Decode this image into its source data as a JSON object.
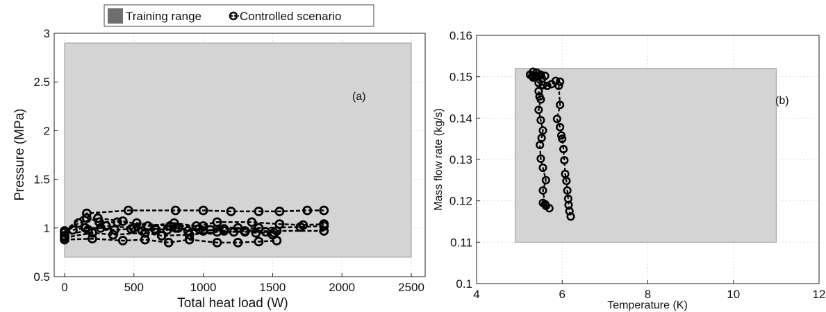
{
  "legend": {
    "items": [
      {
        "label": "Training range",
        "marker": "filled-square",
        "color": "#6e6e6e"
      },
      {
        "label": "Controlled scenario",
        "marker": "circle-dashed-line",
        "color": "#000000"
      }
    ]
  },
  "colors": {
    "training_fill": "#d4d4d4",
    "training_edge": "#9a9a9a",
    "series": "#000000",
    "grid": "#d9d9d9"
  },
  "chart_data": [
    {
      "type": "scatter",
      "annotation": "(a)",
      "xlabel": "Total heat load (W)",
      "ylabel": "Pressure (MPa)",
      "xlim": [
        -75,
        2600
      ],
      "ylim": [
        0.5,
        3
      ],
      "xticks": [
        0,
        500,
        1000,
        1500,
        2000,
        2500
      ],
      "yticks": [
        0.5,
        1,
        1.5,
        2,
        2.5,
        3
      ],
      "xtick_labels": [
        "0",
        "500",
        "1000",
        "1500",
        "2000",
        "2500"
      ],
      "ytick_labels": [
        "0.5",
        "1",
        "1.5",
        "2",
        "2.5",
        "3"
      ],
      "grid": true,
      "training_range": {
        "x": [
          0,
          2500
        ],
        "y": [
          0.7,
          2.9
        ]
      },
      "series": [
        {
          "x": [
            0,
            160,
            460,
            800,
            1000,
            1200,
            1400,
            1550,
            1750,
            1870
          ],
          "y": [
            0.97,
            1.15,
            1.18,
            1.18,
            1.18,
            1.17,
            1.17,
            1.17,
            1.18,
            1.18
          ]
        },
        {
          "x": [
            0,
            100,
            240,
            420,
            600,
            790,
            950,
            1100,
            1350,
            1550,
            1720,
            1870
          ],
          "y": [
            0.95,
            1.05,
            1.1,
            1.07,
            1.02,
            1.05,
            1.02,
            1.06,
            1.06,
            1.04,
            1.03,
            1.04
          ]
        },
        {
          "x": [
            0,
            170,
            300,
            500,
            660,
            800,
            1000,
            1150,
            1400,
            1700,
            1870
          ],
          "y": [
            0.92,
            0.98,
            1.02,
            1.0,
            0.98,
            1.0,
            0.97,
            0.99,
            1.0,
            1.01,
            1.02
          ]
        },
        {
          "x": [
            0,
            200,
            350,
            580,
            700,
            900,
            1100,
            1300,
            1530,
            1870
          ],
          "y": [
            0.9,
            0.95,
            0.93,
            0.95,
            0.92,
            0.93,
            0.96,
            0.96,
            0.97,
            0.97
          ]
        },
        {
          "x": [
            0,
            200,
            420,
            580,
            750,
            900,
            1100,
            1250,
            1400,
            1530
          ],
          "y": [
            0.88,
            0.89,
            0.87,
            0.88,
            0.85,
            0.88,
            0.85,
            0.85,
            0.86,
            0.87
          ]
        },
        {
          "x": [
            60,
            150,
            260,
            360,
            480,
            560,
            650,
            740,
            820,
            890,
            970,
            1050,
            1150,
            1220,
            1300,
            1380,
            1450,
            1510
          ],
          "y": [
            0.98,
            1.0,
            1.0,
            0.98,
            0.99,
            0.97,
            0.99,
            0.98,
            1.0,
            0.97,
            0.99,
            0.98,
            0.97,
            0.96,
            0.97,
            0.95,
            0.96,
            0.95
          ]
        },
        {
          "x": [
            160,
            250,
            380,
            520,
            760,
            1000,
            1250,
            1500
          ],
          "y": [
            1.1,
            1.06,
            1.06,
            1.05,
            1.02,
            1.02,
            1.0,
            0.93
          ]
        }
      ]
    },
    {
      "type": "scatter",
      "annotation": "(b)",
      "xlabel": "Temperature (K)",
      "ylabel": "Mass flow rate (kg/s)",
      "xlim": [
        4,
        12
      ],
      "ylim": [
        0.1,
        0.16
      ],
      "xticks": [
        4,
        6,
        8,
        10,
        12
      ],
      "yticks": [
        0.1,
        0.11,
        0.12,
        0.13,
        0.14,
        0.15,
        0.16
      ],
      "xtick_labels": [
        "4",
        "6",
        "8",
        "10",
        "12"
      ],
      "ytick_labels": [
        "0.1",
        "0.11",
        "0.12",
        "0.13",
        "0.14",
        "0.15",
        "0.16"
      ],
      "grid": true,
      "training_range": {
        "x": [
          4.9,
          11
        ],
        "y": [
          0.11,
          0.152
        ]
      },
      "series": [
        {
          "x": [
            5.25,
            5.32,
            5.4,
            5.47,
            5.53
          ],
          "y": [
            0.1505,
            0.1512,
            0.151,
            0.1502,
            0.1495
          ]
        },
        {
          "x": [
            5.32,
            5.45,
            5.55,
            5.65,
            5.75,
            5.85,
            5.95
          ],
          "y": [
            0.1498,
            0.1485,
            0.148,
            0.1478,
            0.1482,
            0.149,
            0.1488
          ]
        },
        {
          "x": [
            5.45,
            5.47,
            5.5,
            5.45,
            5.5,
            5.55,
            5.52,
            5.48,
            5.5,
            5.55,
            5.62,
            5.55,
            5.6
          ],
          "y": [
            0.1465,
            0.1452,
            0.1445,
            0.142,
            0.1395,
            0.137,
            0.1352,
            0.1335,
            0.1302,
            0.128,
            0.125,
            0.1225,
            0.1192
          ]
        },
        {
          "x": [
            5.92,
            5.95,
            5.88,
            5.95,
            5.98,
            6.0,
            6.03,
            6.05,
            6.07,
            6.1,
            6.12,
            6.14,
            6.15,
            6.17,
            6.2
          ],
          "y": [
            0.1478,
            0.1432,
            0.1398,
            0.1378,
            0.1358,
            0.135,
            0.1325,
            0.1298,
            0.1265,
            0.1248,
            0.1225,
            0.1205,
            0.119,
            0.1175,
            0.1162
          ]
        },
        {
          "x": [
            5.25,
            5.3,
            5.4,
            5.5,
            5.6
          ],
          "y": [
            0.1505,
            0.1502,
            0.1503,
            0.1505,
            0.1502
          ]
        },
        {
          "x": [
            5.55,
            5.62,
            5.7
          ],
          "y": [
            0.1195,
            0.1188,
            0.1182
          ]
        }
      ]
    }
  ]
}
